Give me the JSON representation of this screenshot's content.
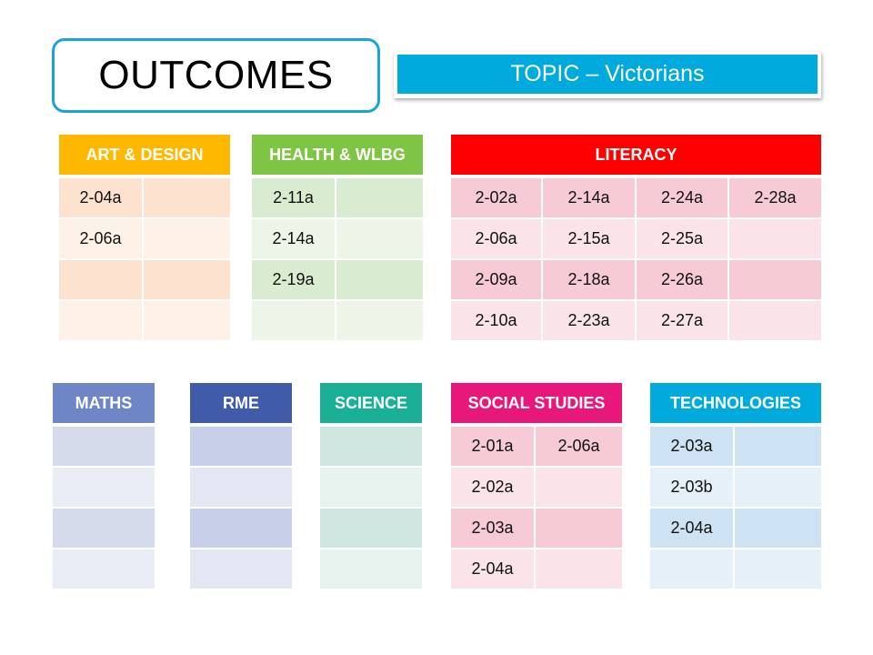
{
  "title": "OUTCOMES",
  "topic": "TOPIC – Victorians",
  "tables": {
    "art": {
      "header": "ART & DESIGN",
      "colors": {
        "header": "#ffb800",
        "row_dark": "#fde3cf",
        "row_light": "#fef1e8"
      },
      "rows": [
        [
          "2-04a",
          ""
        ],
        [
          "2-06a",
          ""
        ],
        [
          "",
          ""
        ],
        [
          "",
          ""
        ]
      ]
    },
    "health": {
      "header": "HEALTH & WLBG",
      "colors": {
        "header": "#7dc543",
        "row_dark": "#d9ecd1",
        "row_light": "#ecf5e8"
      },
      "rows": [
        [
          "2-11a",
          ""
        ],
        [
          "2-14a",
          ""
        ],
        [
          "2-19a",
          ""
        ],
        [
          "",
          ""
        ]
      ]
    },
    "literacy": {
      "header": "LITERACY",
      "colors": {
        "header": "#ff0000",
        "row_dark": "#f6cbd5",
        "row_light": "#fae4ea"
      },
      "rows": [
        [
          "2-02a",
          "2-14a",
          "2-24a",
          "2-28a"
        ],
        [
          "2-06a",
          "2-15a",
          "2-25a",
          ""
        ],
        [
          "2-09a",
          "2-18a",
          "2-26a",
          ""
        ],
        [
          "2-10a",
          "2-23a",
          "2-27a",
          ""
        ]
      ]
    },
    "maths": {
      "header": "MATHS",
      "colors": {
        "header": "#6f86c6",
        "row_dark": "#d5dbea",
        "row_light": "#eaedf5"
      },
      "rows": [
        [
          ""
        ],
        [
          ""
        ],
        [
          ""
        ],
        [
          ""
        ]
      ]
    },
    "rme": {
      "header": "RME",
      "colors": {
        "header": "#3f5ba9",
        "row_dark": "#c7d0e8",
        "row_light": "#e3e7f3"
      },
      "rows": [
        [
          ""
        ],
        [
          ""
        ],
        [
          ""
        ],
        [
          ""
        ]
      ]
    },
    "science": {
      "header": "SCIENCE",
      "colors": {
        "header": "#1aaf97",
        "row_dark": "#cfe5e0",
        "row_light": "#e8f2ef"
      },
      "rows": [
        [
          ""
        ],
        [
          ""
        ],
        [
          ""
        ],
        [
          ""
        ]
      ]
    },
    "social": {
      "header": "SOCIAL STUDIES",
      "colors": {
        "header": "#e8177a",
        "row_dark": "#f6cbd5",
        "row_light": "#fae4ea"
      },
      "rows": [
        [
          "2-01a",
          "2-06a"
        ],
        [
          "2-02a",
          ""
        ],
        [
          "2-03a",
          ""
        ],
        [
          "2-04a",
          ""
        ]
      ]
    },
    "tech": {
      "header": "TECHNOLOGIES",
      "colors": {
        "header": "#00aadd",
        "row_dark": "#cde2f2",
        "row_light": "#e6f0f9"
      },
      "rows": [
        [
          "2-03a",
          ""
        ],
        [
          "2-03b",
          ""
        ],
        [
          "2-04a",
          ""
        ],
        [
          "",
          ""
        ]
      ]
    }
  }
}
